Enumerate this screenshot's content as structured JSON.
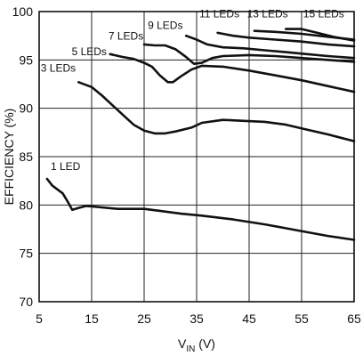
{
  "chart_data": {
    "type": "line",
    "xlabel_main": "V",
    "xlabel_sub": "IN",
    "xlabel_unit": " (V)",
    "ylabel": "EFFICIENCY (%)",
    "xlim": [
      5,
      65
    ],
    "ylim": [
      70,
      100
    ],
    "x_ticks": [
      5,
      15,
      25,
      35,
      45,
      55,
      65
    ],
    "y_ticks": [
      70,
      75,
      80,
      85,
      90,
      95,
      100
    ],
    "grid": true,
    "series": [
      {
        "name": "1 LED",
        "label_at": [
          7.2,
          83.6
        ],
        "points": [
          [
            6.5,
            82.7
          ],
          [
            7.5,
            82.0
          ],
          [
            8.5,
            81.6
          ],
          [
            9.5,
            81.2
          ],
          [
            10.5,
            80.3
          ],
          [
            11.3,
            79.5
          ],
          [
            12.5,
            79.7
          ],
          [
            14,
            79.9
          ],
          [
            16,
            79.8
          ],
          [
            20,
            79.6
          ],
          [
            25,
            79.6
          ],
          [
            28,
            79.4
          ],
          [
            32,
            79.1
          ],
          [
            36,
            78.9
          ],
          [
            42,
            78.5
          ],
          [
            48,
            78.0
          ],
          [
            54,
            77.4
          ],
          [
            60,
            76.8
          ],
          [
            65,
            76.4
          ]
        ]
      },
      {
        "name": "3 LEDs",
        "label_at": [
          5.3,
          93.8
        ],
        "points": [
          [
            12.5,
            92.7
          ],
          [
            15,
            92.2
          ],
          [
            17,
            91.3
          ],
          [
            19,
            90.3
          ],
          [
            21,
            89.3
          ],
          [
            23,
            88.3
          ],
          [
            25,
            87.7
          ],
          [
            27,
            87.4
          ],
          [
            29,
            87.4
          ],
          [
            31,
            87.6
          ],
          [
            34,
            88.0
          ],
          [
            36,
            88.5
          ],
          [
            40,
            88.8
          ],
          [
            44,
            88.7
          ],
          [
            48,
            88.6
          ],
          [
            52,
            88.3
          ],
          [
            56,
            87.8
          ],
          [
            60,
            87.3
          ],
          [
            65,
            86.6
          ]
        ]
      },
      {
        "name": "5 LEDs",
        "label_at": [
          11.2,
          95.5
        ],
        "points": [
          [
            18.5,
            95.6
          ],
          [
            21,
            95.3
          ],
          [
            23,
            95.1
          ],
          [
            25,
            94.7
          ],
          [
            26.5,
            94.3
          ],
          [
            28,
            93.4
          ],
          [
            29.5,
            92.7
          ],
          [
            30.5,
            92.7
          ],
          [
            32,
            93.3
          ],
          [
            34,
            94.0
          ],
          [
            36,
            94.4
          ],
          [
            40,
            94.3
          ],
          [
            45,
            93.9
          ],
          [
            50,
            93.4
          ],
          [
            55,
            92.9
          ],
          [
            60,
            92.3
          ],
          [
            65,
            91.7
          ]
        ]
      },
      {
        "name": "7 LEDs",
        "label_at": [
          18.2,
          97.1
        ],
        "points": [
          [
            25,
            96.6
          ],
          [
            27,
            96.5
          ],
          [
            29,
            96.5
          ],
          [
            31,
            96.1
          ],
          [
            33,
            95.3
          ],
          [
            34.5,
            94.6
          ],
          [
            36,
            94.7
          ],
          [
            38,
            95.2
          ],
          [
            40,
            95.4
          ],
          [
            45,
            95.5
          ],
          [
            50,
            95.4
          ],
          [
            55,
            95.2
          ],
          [
            60,
            95.0
          ],
          [
            65,
            94.8
          ]
        ]
      },
      {
        "name": "9 LEDs",
        "label_at": [
          25.7,
          98.2
        ],
        "points": [
          [
            33,
            97.5
          ],
          [
            35,
            97.1
          ],
          [
            37,
            96.6
          ],
          [
            40,
            96.3
          ],
          [
            44,
            96.2
          ],
          [
            48,
            96.0
          ],
          [
            52,
            95.8
          ],
          [
            56,
            95.6
          ],
          [
            60,
            95.4
          ],
          [
            65,
            95.2
          ]
        ]
      },
      {
        "name": "11 LEDs",
        "label_at": [
          35.5,
          99.4
        ],
        "points": [
          [
            39,
            97.8
          ],
          [
            42,
            97.5
          ],
          [
            45,
            97.3
          ],
          [
            50,
            97.1
          ],
          [
            55,
            96.9
          ],
          [
            60,
            96.6
          ],
          [
            65,
            96.4
          ]
        ]
      },
      {
        "name": "13 LEDs",
        "label_at": [
          44.6,
          99.4
        ],
        "points": [
          [
            46,
            98.0
          ],
          [
            50,
            97.9
          ],
          [
            55,
            97.7
          ],
          [
            60,
            97.4
          ],
          [
            65,
            97.1
          ]
        ]
      },
      {
        "name": "15 LEDs",
        "label_at": [
          55.3,
          99.4
        ],
        "points": [
          [
            52,
            98.2
          ],
          [
            55,
            98.2
          ],
          [
            58,
            97.8
          ],
          [
            61,
            97.4
          ],
          [
            65,
            97.0
          ]
        ]
      }
    ]
  }
}
